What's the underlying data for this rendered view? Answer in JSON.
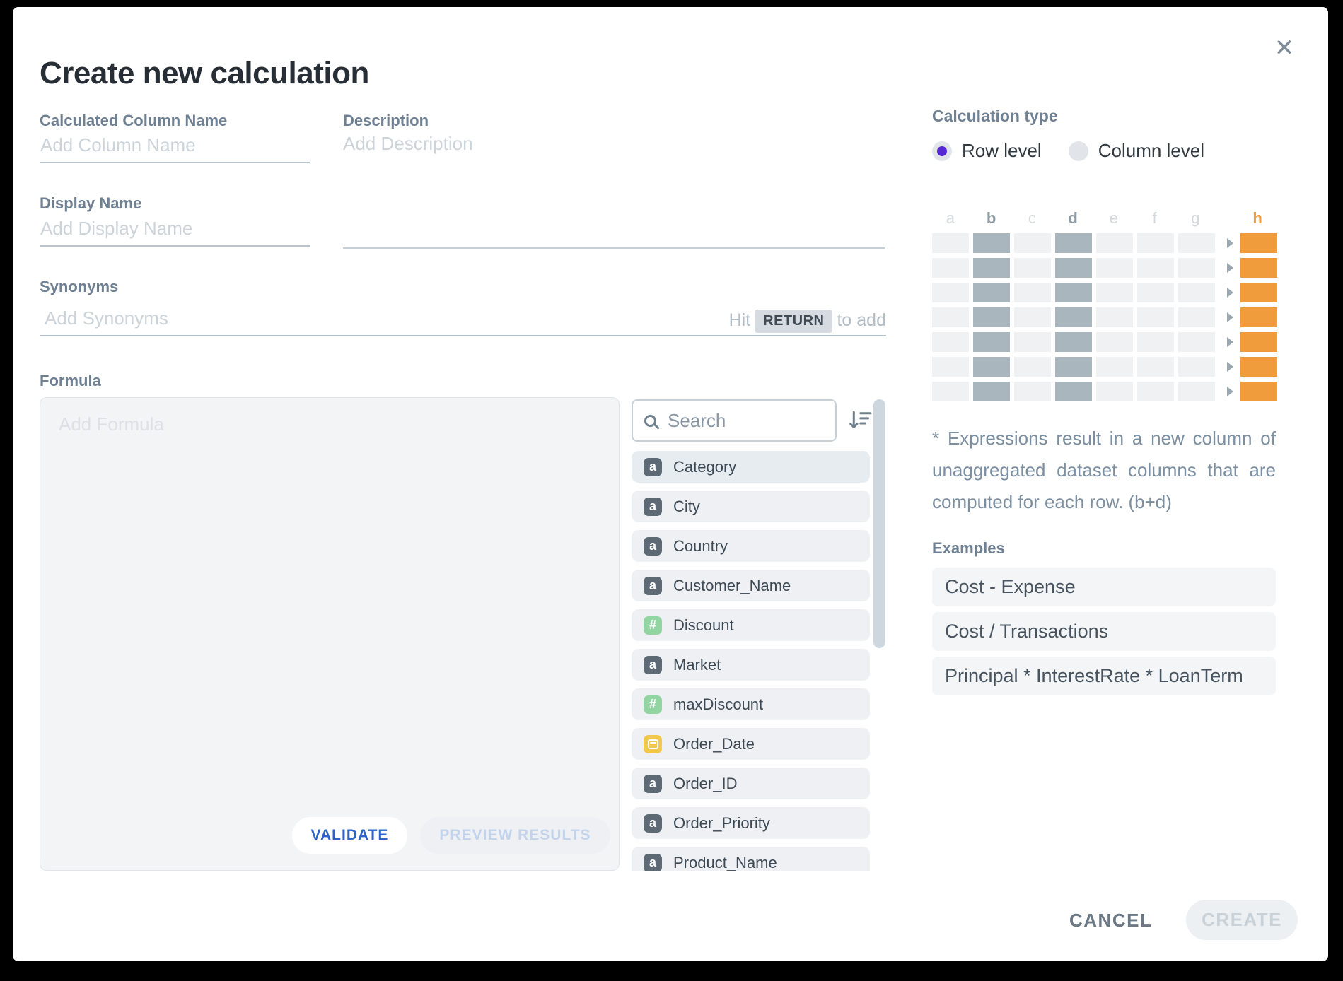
{
  "dialog": {
    "title": "Create new calculation",
    "close_glyph": "✕"
  },
  "form": {
    "column_name": {
      "label": "Calculated Column Name",
      "placeholder": "Add Column Name",
      "value": ""
    },
    "display_name": {
      "label": "Display Name",
      "placeholder": "Add Display Name",
      "value": ""
    },
    "synonyms": {
      "label": "Synonyms",
      "placeholder": "Add Synonyms",
      "value": "",
      "hint_prefix": "Hit",
      "hint_key": "RETURN",
      "hint_suffix": "to add"
    },
    "description": {
      "label": "Description",
      "placeholder": "Add Description",
      "value": ""
    },
    "formula": {
      "label": "Formula",
      "placeholder": "Add Formula",
      "value": "",
      "validate_label": "VALIDATE",
      "preview_label": "PREVIEW RESULTS"
    }
  },
  "fields_panel": {
    "search_placeholder": "Search",
    "type_glyphs": {
      "text": "a",
      "number": "#",
      "date": ""
    },
    "items": [
      {
        "name": "Category",
        "type": "text",
        "highlighted": true
      },
      {
        "name": "City",
        "type": "text"
      },
      {
        "name": "Country",
        "type": "text"
      },
      {
        "name": "Customer_Name",
        "type": "text"
      },
      {
        "name": "Discount",
        "type": "number"
      },
      {
        "name": "Market",
        "type": "text"
      },
      {
        "name": "maxDiscount",
        "type": "number"
      },
      {
        "name": "Order_Date",
        "type": "date"
      },
      {
        "name": "Order_ID",
        "type": "text"
      },
      {
        "name": "Order_Priority",
        "type": "text"
      },
      {
        "name": "Product_Name",
        "type": "text"
      }
    ]
  },
  "calculation_type": {
    "label": "Calculation type",
    "options": [
      {
        "label": "Row level",
        "selected": true
      },
      {
        "label": "Column level",
        "selected": false
      }
    ],
    "grid": {
      "headers": [
        "a",
        "b",
        "c",
        "d",
        "e",
        "f",
        "g",
        "h"
      ],
      "highlighted": [
        "b",
        "d"
      ],
      "result_column": "h",
      "rows": 7
    },
    "note": "* Expressions result in a new column of unaggregated dataset columns that are computed for each row. (b+d)"
  },
  "examples": {
    "label": "Examples",
    "items": [
      "Cost - Expense",
      "Cost / Transactions",
      "Principal * InterestRate * LoanTerm"
    ]
  },
  "footer": {
    "cancel_label": "CANCEL",
    "create_label": "CREATE"
  },
  "colors": {
    "accent_purple": "#5629d3",
    "result_orange": "#f09c3d",
    "column_highlight_gray": "#a9b6bd",
    "validate_blue": "#2b63c6",
    "badge_text": "#5d6a75",
    "badge_number": "#92d5a3",
    "badge_date": "#f1c84e",
    "label_gray_blue": "#6e8091"
  }
}
